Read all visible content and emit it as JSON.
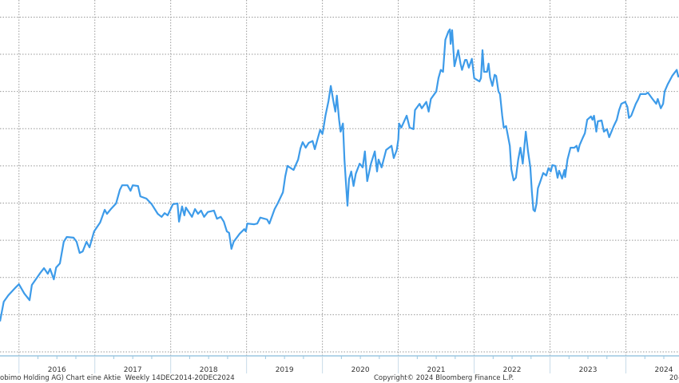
{
  "chart_data": {
    "type": "line",
    "title": "",
    "xlabel": "",
    "ylabel": "",
    "x_tick_labels": [
      "2016",
      "2017",
      "2018",
      "2019",
      "2020",
      "2021",
      "2022",
      "2023",
      "2024"
    ],
    "y_tick_labels": [],
    "xlim": [
      2015.75,
      2024.7
    ],
    "ylim": [
      0,
      9.46
    ],
    "grid": true,
    "grid_style": "dotted",
    "line_color": "#3d9be9",
    "axis_color": "#9cc7e0",
    "series": [
      {
        "x": [
          2015.75,
          2015.8,
          2015.86,
          2015.96,
          2016.0,
          2016.07,
          2016.14,
          2016.17,
          2016.28,
          2016.33,
          2016.38,
          2016.41,
          2016.46,
          2016.49,
          2016.54,
          2016.59,
          2016.63,
          2016.72,
          2016.76,
          2016.8,
          2016.84,
          2016.89,
          2016.93,
          2016.99,
          2017.07,
          2017.13,
          2017.16,
          2017.22,
          2017.28,
          2017.33,
          2017.36,
          2017.43,
          2017.47,
          2017.5,
          2017.57,
          2017.6,
          2017.68,
          2017.75,
          2017.83,
          2017.88,
          2017.92,
          2017.96,
          2018.03,
          2018.09,
          2018.11,
          2018.15,
          2018.18,
          2018.2,
          2018.28,
          2018.32,
          2018.36,
          2018.4,
          2018.44,
          2018.49,
          2018.57,
          2018.61,
          2018.66,
          2018.7,
          2018.74,
          2018.77,
          2018.8,
          2018.83,
          2018.91,
          2018.97,
          2018.99,
          2019.01,
          2019.1,
          2019.14,
          2019.18,
          2019.27,
          2019.3,
          2019.37,
          2019.41,
          2019.48,
          2019.51,
          2019.54,
          2019.62,
          2019.68,
          2019.71,
          2019.74,
          2019.78,
          2019.82,
          2019.87,
          2019.9,
          2019.94,
          2019.97,
          2020.0,
          2020.01,
          2020.04,
          2020.08,
          2020.11,
          2020.15,
          2020.17,
          2020.19,
          2020.22,
          2020.24,
          2020.27,
          2020.29,
          2020.31,
          2020.33,
          2020.35,
          2020.38,
          2020.41,
          2020.44,
          2020.49,
          2020.53,
          2020.56,
          2020.59,
          2020.64,
          2020.69,
          2020.72,
          2020.74,
          2020.78,
          2020.84,
          2020.91,
          2020.94,
          2020.98,
          2021.0,
          2021.01,
          2021.04,
          2021.11,
          2021.15,
          2021.2,
          2021.22,
          2021.28,
          2021.31,
          2021.37,
          2021.4,
          2021.43,
          2021.5,
          2021.53,
          2021.56,
          2021.59,
          2021.62,
          2021.66,
          2021.68,
          2021.69,
          2021.71,
          2021.74,
          2021.76,
          2021.79,
          2021.82,
          2021.84,
          2021.88,
          2021.9,
          2021.93,
          2021.97,
          2022.0,
          2022.07,
          2022.09,
          2022.11,
          2022.13,
          2022.17,
          2022.19,
          2022.21,
          2022.24,
          2022.27,
          2022.29,
          2022.32,
          2022.34,
          2022.37,
          2022.39,
          2022.42,
          2022.44,
          2022.47,
          2022.49,
          2022.52,
          2022.55,
          2022.58,
          2022.61,
          2022.64,
          2022.68,
          2022.71,
          2022.74,
          2022.76,
          2022.78,
          2022.8,
          2022.82,
          2022.84,
          2022.87,
          2022.91,
          2022.95,
          2022.98,
          2023.01,
          2023.03,
          2023.07,
          2023.1,
          2023.12,
          2023.16,
          2023.19,
          2023.2,
          2023.23,
          2023.27,
          2023.32,
          2023.35,
          2023.37,
          2023.39,
          2023.43,
          2023.46,
          2023.49,
          2023.54,
          2023.56,
          2023.58,
          2023.61,
          2023.63,
          2023.68,
          2023.71,
          2023.75,
          2023.78,
          2023.84,
          2023.88,
          2023.91,
          2023.94,
          2023.99,
          2024.02,
          2024.04,
          2024.07,
          2024.13,
          2024.16,
          2024.19,
          2024.26,
          2024.29,
          2024.35,
          2024.4,
          2024.42,
          2024.46,
          2024.49,
          2024.51,
          2024.55,
          2024.61,
          2024.67,
          2024.69,
          2024.7
        ],
        "y": [
          0.82,
          1.35,
          1.52,
          1.74,
          1.82,
          1.57,
          1.39,
          1.8,
          2.12,
          2.25,
          2.1,
          2.23,
          1.95,
          2.27,
          2.38,
          2.96,
          3.09,
          3.07,
          2.96,
          2.66,
          2.7,
          2.96,
          2.81,
          3.24,
          3.48,
          3.82,
          3.71,
          3.86,
          3.99,
          4.36,
          4.48,
          4.48,
          4.33,
          4.48,
          4.46,
          4.18,
          4.12,
          3.97,
          3.71,
          3.63,
          3.73,
          3.67,
          3.97,
          3.99,
          3.5,
          3.91,
          3.67,
          3.88,
          3.63,
          3.84,
          3.71,
          3.8,
          3.63,
          3.76,
          3.8,
          3.58,
          3.63,
          3.5,
          3.24,
          3.2,
          2.77,
          2.96,
          3.18,
          3.3,
          3.24,
          3.45,
          3.43,
          3.45,
          3.61,
          3.56,
          3.45,
          3.84,
          3.99,
          4.29,
          4.72,
          5.0,
          4.89,
          5.17,
          5.47,
          5.64,
          5.49,
          5.62,
          5.67,
          5.45,
          5.75,
          5.97,
          5.86,
          5.97,
          6.35,
          6.74,
          7.15,
          6.67,
          6.46,
          6.89,
          6.24,
          5.92,
          6.14,
          5.17,
          4.53,
          3.93,
          4.64,
          4.85,
          4.46,
          4.79,
          5.06,
          4.96,
          5.39,
          4.59,
          5.06,
          5.39,
          4.85,
          5.17,
          4.96,
          5.43,
          5.54,
          5.21,
          5.43,
          5.71,
          6.14,
          6.03,
          6.35,
          6.03,
          5.99,
          6.5,
          6.67,
          6.55,
          6.72,
          6.46,
          6.8,
          7.0,
          7.36,
          7.58,
          7.53,
          8.39,
          8.61,
          8.67,
          8.28,
          8.65,
          7.68,
          7.85,
          8.11,
          7.75,
          7.58,
          7.85,
          7.85,
          7.64,
          7.88,
          7.36,
          7.27,
          7.36,
          8.11,
          7.53,
          7.53,
          7.75,
          7.38,
          7.15,
          7.45,
          7.42,
          7.0,
          6.93,
          6.35,
          6.03,
          6.07,
          5.86,
          5.54,
          4.91,
          4.61,
          4.68,
          5.17,
          5.49,
          5.06,
          5.92,
          5.39,
          4.96,
          4.31,
          3.82,
          3.78,
          3.97,
          4.4,
          4.57,
          4.81,
          4.74,
          4.94,
          4.85,
          5.02,
          5.0,
          4.68,
          4.87,
          4.66,
          4.89,
          4.7,
          5.17,
          5.49,
          5.49,
          5.54,
          5.39,
          5.56,
          5.75,
          5.88,
          6.24,
          6.33,
          6.24,
          6.35,
          5.92,
          6.2,
          6.22,
          5.92,
          5.99,
          5.77,
          6.07,
          6.24,
          6.5,
          6.67,
          6.72,
          6.59,
          6.29,
          6.35,
          6.67,
          6.78,
          6.93,
          6.93,
          6.97,
          6.8,
          6.67,
          6.8,
          6.55,
          6.67,
          7.0,
          7.19,
          7.42,
          7.58,
          7.4,
          7.45
        ]
      }
    ]
  },
  "footer": {
    "description": "obimo Holding AG) Chart eine Aktie  Weekly 14DEC2014-20DEC2024",
    "copyright": "Copyright© 2024 Bloomberg Finance L.P.",
    "date_fragment": "20-"
  }
}
